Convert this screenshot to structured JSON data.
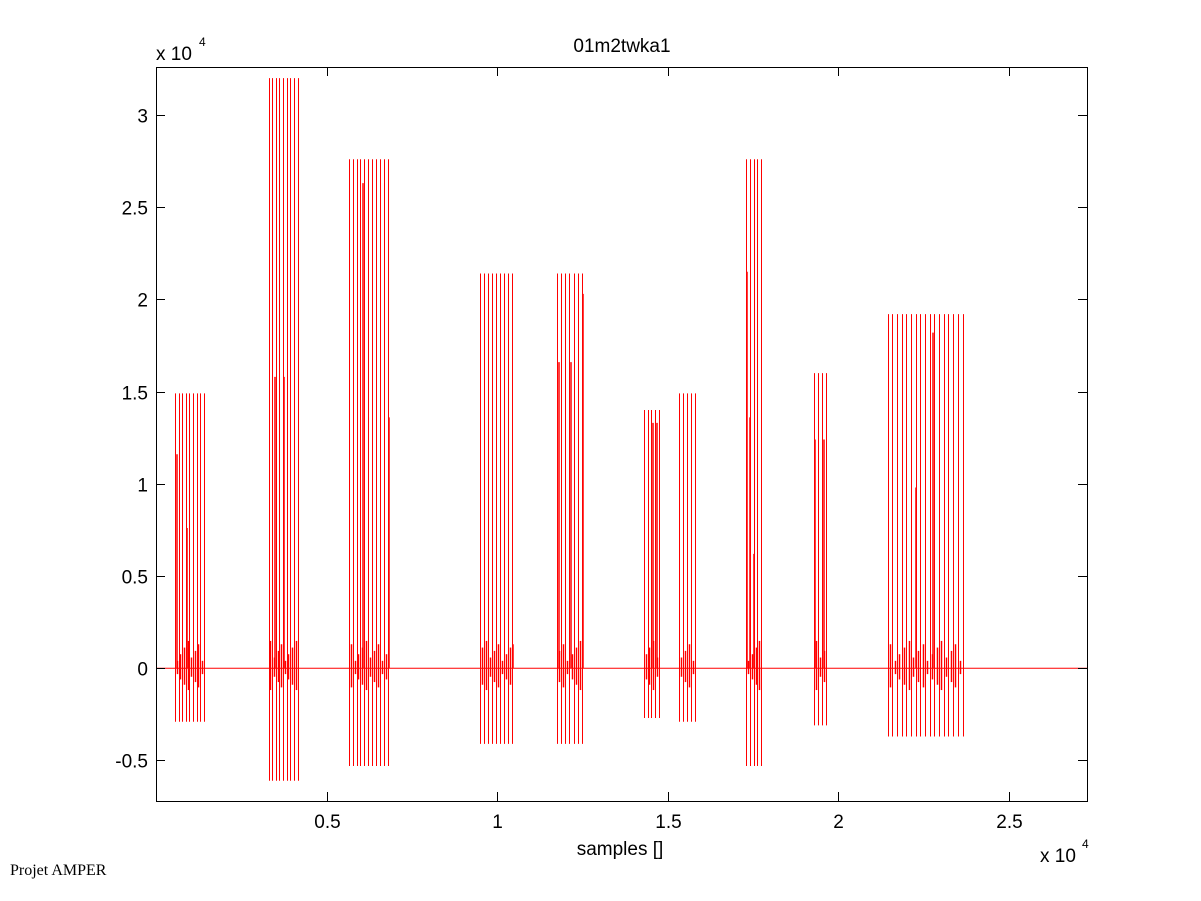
{
  "chart_data": {
    "type": "line",
    "title": "01m2twka1",
    "xlabel": "samples []",
    "ylabel": "",
    "x_exponent_label": "x 10",
    "x_exponent_power": "4",
    "y_exponent_label": "x 10",
    "y_exponent_power": "4",
    "xlim": [
      0,
      27300
    ],
    "ylim": [
      -7200,
      32600
    ],
    "xticks": [
      5000,
      10000,
      15000,
      20000,
      25000
    ],
    "xtick_labels": [
      "0.5",
      "1",
      "1.5",
      "2",
      "2.5"
    ],
    "yticks": [
      -5000,
      0,
      5000,
      10000,
      15000,
      20000,
      25000,
      30000
    ],
    "ytick_labels": [
      "-0.5",
      "0",
      "0.5",
      "1",
      "1.5",
      "2",
      "2.5",
      "3"
    ],
    "grid": false,
    "line_color": "#ff0000",
    "baseline": 0,
    "series": [
      {
        "bursts": [
          {
            "x_start": 560,
            "x_end": 1400,
            "count": 9,
            "high": 14900,
            "low": -2900,
            "peaks": [
              [
                580,
                11600
              ],
              [
                880,
                7600
              ]
            ]
          },
          {
            "x_start": 3300,
            "x_end": 4150,
            "count": 9,
            "high": 32000,
            "low": -6100,
            "peaks": [
              [
                3450,
                15800
              ],
              [
                3730,
                15800
              ]
            ]
          },
          {
            "x_start": 5650,
            "x_end": 6800,
            "count": 11,
            "high": 27600,
            "low": -5300,
            "peaks": [
              [
                6030,
                26300
              ],
              [
                6800,
                13600
              ]
            ]
          },
          {
            "x_start": 9500,
            "x_end": 10450,
            "count": 9,
            "high": 21400,
            "low": -4100,
            "peaks": [
              [
                10450,
                1300
              ]
            ]
          },
          {
            "x_start": 11750,
            "x_end": 12500,
            "count": 7,
            "high": 21400,
            "low": -4100,
            "peaks": [
              [
                11800,
                16600
              ],
              [
                12150,
                16600
              ],
              [
                12480,
                20300
              ]
            ]
          },
          {
            "x_start": 14300,
            "x_end": 14750,
            "count": 5,
            "high": 14000,
            "low": -2700,
            "peaks": [
              [
                14550,
                13300
              ],
              [
                14650,
                13300
              ]
            ]
          },
          {
            "x_start": 15350,
            "x_end": 15800,
            "count": 5,
            "high": 14900,
            "low": -2900,
            "peaks": []
          },
          {
            "x_start": 17300,
            "x_end": 17750,
            "count": 5,
            "high": 27600,
            "low": -5300,
            "peaks": [
              [
                17300,
                21500
              ],
              [
                17400,
                13600
              ],
              [
                17500,
                6200
              ]
            ]
          },
          {
            "x_start": 19300,
            "x_end": 19650,
            "count": 4,
            "high": 16000,
            "low": -3100,
            "peaks": [
              [
                19300,
                12400
              ],
              [
                19550,
                12400
              ]
            ]
          },
          {
            "x_start": 21450,
            "x_end": 23650,
            "count": 17,
            "high": 19200,
            "low": -3700,
            "peaks": [
              [
                22250,
                9800
              ],
              [
                22750,
                18200
              ]
            ]
          }
        ]
      }
    ]
  },
  "footer": {
    "text": "Projet AMPER"
  }
}
